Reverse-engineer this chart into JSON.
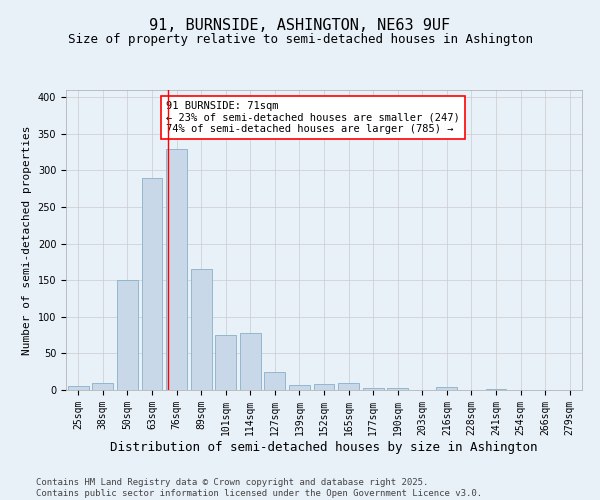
{
  "title": "91, BURNSIDE, ASHINGTON, NE63 9UF",
  "subtitle": "Size of property relative to semi-detached houses in Ashington",
  "xlabel": "Distribution of semi-detached houses by size in Ashington",
  "ylabel": "Number of semi-detached properties",
  "categories": [
    "25sqm",
    "38sqm",
    "50sqm",
    "63sqm",
    "76sqm",
    "89sqm",
    "101sqm",
    "114sqm",
    "127sqm",
    "139sqm",
    "152sqm",
    "165sqm",
    "177sqm",
    "190sqm",
    "203sqm",
    "216sqm",
    "228sqm",
    "241sqm",
    "254sqm",
    "266sqm",
    "279sqm"
  ],
  "values": [
    5,
    10,
    150,
    290,
    330,
    165,
    75,
    78,
    25,
    7,
    8,
    10,
    3,
    3,
    0,
    4,
    0,
    1,
    0,
    0,
    0
  ],
  "bar_color": "#c8d8e8",
  "bar_edge_color": "#8ab0c8",
  "redline_index": 3.67,
  "annotation_text": "91 BURNSIDE: 71sqm\n← 23% of semi-detached houses are smaller (247)\n74% of semi-detached houses are larger (785) →",
  "annotation_box_color": "white",
  "annotation_box_edge_color": "red",
  "redline_color": "red",
  "grid_color": "#cccccc",
  "background_color": "#e8f0f8",
  "footer_text": "Contains HM Land Registry data © Crown copyright and database right 2025.\nContains public sector information licensed under the Open Government Licence v3.0.",
  "ylim": [
    0,
    410
  ],
  "title_fontsize": 11,
  "subtitle_fontsize": 9,
  "xlabel_fontsize": 9,
  "ylabel_fontsize": 8,
  "tick_fontsize": 7,
  "annotation_fontsize": 7.5,
  "footer_fontsize": 6.5
}
